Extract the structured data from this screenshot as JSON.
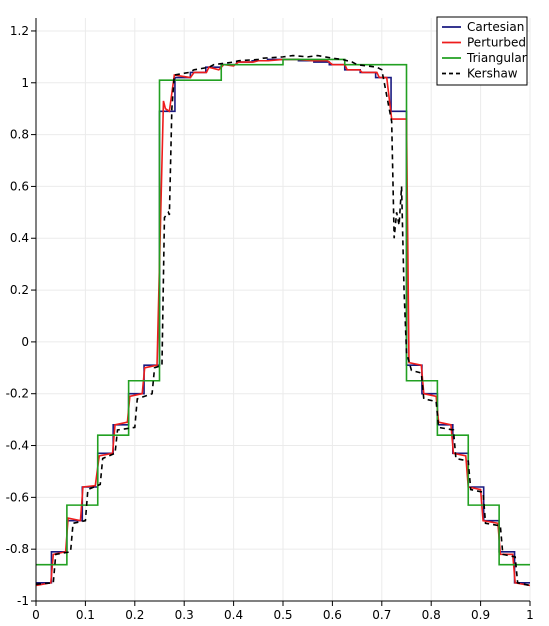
{
  "chart_data": {
    "type": "line",
    "title": "",
    "xlabel": "",
    "ylabel": "",
    "xlim": [
      0,
      1
    ],
    "ylim": [
      -1,
      1.25
    ],
    "grid": true,
    "legend_position": "top-right",
    "x_ticks": [
      {
        "value": 0,
        "label": "0"
      },
      {
        "value": 0.1,
        "label": "0.1"
      },
      {
        "value": 0.2,
        "label": "0.2"
      },
      {
        "value": 0.3,
        "label": "0.3"
      },
      {
        "value": 0.4,
        "label": "0.4"
      },
      {
        "value": 0.5,
        "label": "0.5"
      },
      {
        "value": 0.6,
        "label": "0.6"
      },
      {
        "value": 0.7,
        "label": "0.7"
      },
      {
        "value": 0.8,
        "label": "0.8"
      },
      {
        "value": 0.9,
        "label": "0.9"
      },
      {
        "value": 1,
        "label": "1"
      }
    ],
    "y_ticks": [
      {
        "value": -1,
        "label": "-1"
      },
      {
        "value": -0.8,
        "label": "-0.8"
      },
      {
        "value": -0.6,
        "label": "-0.6"
      },
      {
        "value": -0.4,
        "label": "-0.4"
      },
      {
        "value": -0.2,
        "label": "-0.2"
      },
      {
        "value": 0,
        "label": "0"
      },
      {
        "value": 0.2,
        "label": "0.2"
      },
      {
        "value": 0.4,
        "label": "0.4"
      },
      {
        "value": 0.6,
        "label": "0.6"
      },
      {
        "value": 0.8,
        "label": "0.8"
      },
      {
        "value": 1,
        "label": "1"
      },
      {
        "value": 1.2,
        "label": "1.2"
      }
    ],
    "series": [
      {
        "name": "Cartesian",
        "color": "#1a1a80",
        "dash": "solid",
        "x": [
          0,
          0.03125,
          0.03125,
          0.0625,
          0.0625,
          0.09375,
          0.09375,
          0.125,
          0.125,
          0.15625,
          0.15625,
          0.1875,
          0.1875,
          0.21875,
          0.21875,
          0.25,
          0.25,
          0.28125,
          0.28125,
          0.3125,
          0.3125,
          0.34375,
          0.34375,
          0.375,
          0.375,
          0.40625,
          0.40625,
          0.4375,
          0.4375,
          0.46875,
          0.46875,
          0.5,
          0.5,
          0.53125,
          0.53125,
          0.5625,
          0.5625,
          0.59375,
          0.59375,
          0.625,
          0.625,
          0.65625,
          0.65625,
          0.6875,
          0.6875,
          0.71875,
          0.71875,
          0.75,
          0.75,
          0.78125,
          0.78125,
          0.8125,
          0.8125,
          0.84375,
          0.84375,
          0.875,
          0.875,
          0.90625,
          0.90625,
          0.9375,
          0.9375,
          0.96875,
          0.96875,
          1
        ],
        "y": [
          -0.93,
          -0.93,
          -0.81,
          -0.81,
          -0.69,
          -0.69,
          -0.56,
          -0.56,
          -0.43,
          -0.43,
          -0.32,
          -0.32,
          -0.2,
          -0.2,
          -0.09,
          -0.09,
          0.89,
          0.89,
          1.02,
          1.02,
          1.04,
          1.04,
          1.06,
          1.06,
          1.07,
          1.07,
          1.08,
          1.08,
          1.085,
          1.085,
          1.09,
          1.09,
          1.09,
          1.09,
          1.085,
          1.085,
          1.08,
          1.08,
          1.07,
          1.07,
          1.05,
          1.05,
          1.04,
          1.04,
          1.02,
          1.02,
          0.89,
          0.89,
          -0.09,
          -0.09,
          -0.2,
          -0.2,
          -0.32,
          -0.32,
          -0.43,
          -0.43,
          -0.56,
          -0.56,
          -0.69,
          -0.69,
          -0.81,
          -0.81,
          -0.93,
          -0.93
        ]
      },
      {
        "name": "Perturbed",
        "color": "#ee1c1c",
        "dash": "solid",
        "x": [
          0,
          0.03,
          0.035,
          0.06,
          0.065,
          0.09,
          0.095,
          0.12,
          0.128,
          0.155,
          0.16,
          0.185,
          0.19,
          0.215,
          0.22,
          0.245,
          0.25,
          0.258,
          0.262,
          0.27,
          0.28,
          0.3125,
          0.32,
          0.345,
          0.35,
          0.37,
          0.38,
          0.4,
          0.41,
          0.44,
          0.45,
          0.47,
          0.5,
          0.53,
          0.56,
          0.59,
          0.6,
          0.625,
          0.63,
          0.655,
          0.66,
          0.69,
          0.695,
          0.71,
          0.72,
          0.75,
          0.755,
          0.78,
          0.785,
          0.81,
          0.815,
          0.84,
          0.845,
          0.87,
          0.875,
          0.9,
          0.905,
          0.935,
          0.94,
          0.965,
          0.97,
          1
        ],
        "y": [
          -0.94,
          -0.93,
          -0.82,
          -0.81,
          -0.68,
          -0.69,
          -0.56,
          -0.555,
          -0.44,
          -0.43,
          -0.32,
          -0.31,
          -0.21,
          -0.2,
          -0.1,
          -0.09,
          0.3,
          0.93,
          0.9,
          0.89,
          1.03,
          1.02,
          1.04,
          1.04,
          1.06,
          1.05,
          1.07,
          1.065,
          1.08,
          1.08,
          1.085,
          1.085,
          1.09,
          1.09,
          1.085,
          1.085,
          1.07,
          1.07,
          1.05,
          1.05,
          1.04,
          1.04,
          1.02,
          1.02,
          0.86,
          0.86,
          -0.08,
          -0.09,
          -0.2,
          -0.21,
          -0.31,
          -0.32,
          -0.43,
          -0.44,
          -0.56,
          -0.57,
          -0.69,
          -0.7,
          -0.82,
          -0.82,
          -0.93,
          -0.94
        ]
      },
      {
        "name": "Triangular",
        "color": "#22a022",
        "dash": "solid",
        "x": [
          0,
          0.0625,
          0.0625,
          0.125,
          0.125,
          0.1875,
          0.1875,
          0.25,
          0.25,
          0.375,
          0.375,
          0.5,
          0.5,
          0.625,
          0.625,
          0.75,
          0.75,
          0.8125,
          0.8125,
          0.875,
          0.875,
          0.9375,
          0.9375,
          1
        ],
        "y": [
          -0.86,
          -0.86,
          -0.63,
          -0.63,
          -0.36,
          -0.36,
          -0.15,
          -0.15,
          1.01,
          1.01,
          1.07,
          1.07,
          1.09,
          1.09,
          1.07,
          1.07,
          -0.15,
          -0.15,
          -0.36,
          -0.36,
          -0.63,
          -0.63,
          -0.86,
          -0.86
        ]
      },
      {
        "name": "Kershaw",
        "color": "#000000",
        "dash": "dashed",
        "x": [
          0,
          0.035,
          0.04,
          0.07,
          0.075,
          0.1,
          0.105,
          0.13,
          0.135,
          0.16,
          0.165,
          0.2,
          0.205,
          0.235,
          0.24,
          0.255,
          0.26,
          0.268,
          0.27,
          0.275,
          0.28,
          0.31,
          0.32,
          0.35,
          0.36,
          0.4,
          0.41,
          0.45,
          0.46,
          0.5,
          0.52,
          0.55,
          0.57,
          0.6,
          0.62,
          0.64,
          0.65,
          0.69,
          0.7,
          0.72,
          0.725,
          0.73,
          0.735,
          0.74,
          0.745,
          0.75,
          0.76,
          0.78,
          0.785,
          0.81,
          0.815,
          0.845,
          0.85,
          0.875,
          0.88,
          0.905,
          0.91,
          0.94,
          0.945,
          0.97,
          0.975,
          1
        ],
        "y": [
          -0.935,
          -0.93,
          -0.82,
          -0.81,
          -0.7,
          -0.69,
          -0.57,
          -0.55,
          -0.45,
          -0.43,
          -0.34,
          -0.33,
          -0.22,
          -0.2,
          -0.1,
          -0.09,
          0.48,
          0.5,
          0.49,
          0.9,
          1.03,
          1.04,
          1.05,
          1.06,
          1.07,
          1.08,
          1.085,
          1.09,
          1.095,
          1.1,
          1.105,
          1.1,
          1.105,
          1.095,
          1.09,
          1.08,
          1.07,
          1.06,
          1.05,
          0.85,
          0.4,
          0.5,
          0.45,
          0.6,
          0.2,
          -0.04,
          -0.11,
          -0.12,
          -0.22,
          -0.23,
          -0.33,
          -0.34,
          -0.45,
          -0.46,
          -0.57,
          -0.58,
          -0.7,
          -0.71,
          -0.82,
          -0.83,
          -0.93,
          -0.94
        ]
      }
    ]
  }
}
